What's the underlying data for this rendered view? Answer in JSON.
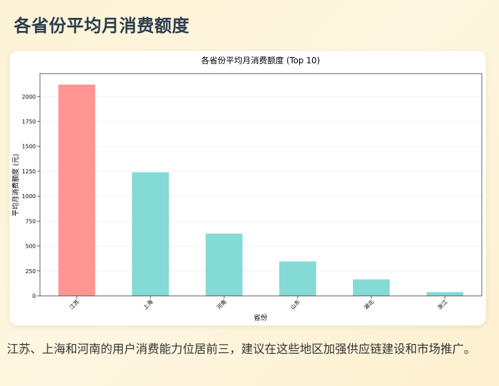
{
  "page": {
    "title": "各省份平均月消费额度",
    "description": "江苏、上海和河南的用户消费能力位居前三，建议在这些地区加强供应链建设和市场推广。"
  },
  "colors": {
    "highlight_bar": "#ff9592",
    "normal_bar": "#84dad5",
    "grid": "#eeeeee"
  },
  "chart_data": {
    "type": "bar",
    "title": "各省份平均月消费额度 (Top 10)",
    "xlabel": "省份",
    "ylabel": "平均月消费额度 (元)",
    "categories": [
      "江苏",
      "上海",
      "河南",
      "山东",
      "湖北",
      "浙江"
    ],
    "values": [
      2120,
      1240,
      625,
      345,
      165,
      38
    ],
    "highlight_index": 0,
    "ylim": [
      0,
      2230
    ],
    "yticks": [
      0,
      250,
      500,
      750,
      1000,
      1250,
      1500,
      1750,
      2000
    ],
    "grid": true,
    "legend": "none"
  }
}
